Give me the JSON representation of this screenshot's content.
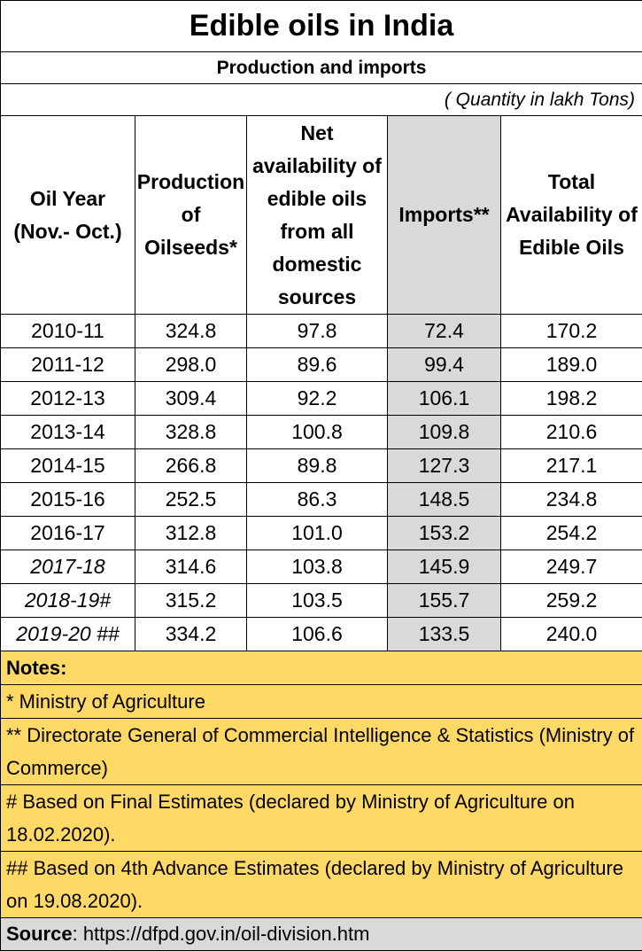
{
  "title": "Edible oils in India",
  "subtitle": "Production and imports",
  "quantity_note": "( Quantity in lakh Tons)",
  "columns": [
    "Oil Year (Nov.- Oct.)",
    "Production of Oilseeds*",
    "Net availability of edible oils from all domestic sources",
    "Imports**",
    "Total Availability of Edible Oils"
  ],
  "rows": [
    [
      "2010-11",
      "324.8",
      "97.8",
      "72.4",
      "170.2"
    ],
    [
      "2011-12",
      "298.0",
      "89.6",
      "99.4",
      "189.0"
    ],
    [
      "2012-13",
      "309.4",
      "92.2",
      "106.1",
      "198.2"
    ],
    [
      "2013-14",
      "328.8",
      "100.8",
      "109.8",
      "210.6"
    ],
    [
      "2014-15",
      "266.8",
      "89.8",
      "127.3",
      "217.1"
    ],
    [
      "2015-16",
      "252.5",
      "86.3",
      "148.5",
      "234.8"
    ],
    [
      "2016-17",
      "312.8",
      "101.0",
      "153.2",
      "254.2"
    ],
    [
      "2017-18",
      "314.6",
      "103.8",
      "145.9",
      "249.7"
    ],
    [
      "2018-19#",
      "315.2",
      "103.5",
      "155.7",
      "259.2"
    ],
    [
      "2019-20 ##",
      "334.2",
      "106.6",
      "133.5",
      "240.0"
    ]
  ],
  "notes": {
    "heading": "Notes:",
    "items": [
      "* Ministry of Agriculture",
      "** Directorate General of Commercial Intelligence & Statistics (Ministry of Commerce)",
      "# Based on Final Estimates (declared by Ministry of Agriculture on 18.02.2020).",
      "## Based on 4th Advance Estimates (declared by Ministry of Agriculture on 19.08.2020)."
    ]
  },
  "source": {
    "label": "Source",
    "text": ": https://dfpd.gov.in/oil-division.htm"
  },
  "colors": {
    "imports_shade": "#d9d9d9",
    "notes_bg": "#ffd966",
    "source_bg": "#d9d9d9"
  }
}
